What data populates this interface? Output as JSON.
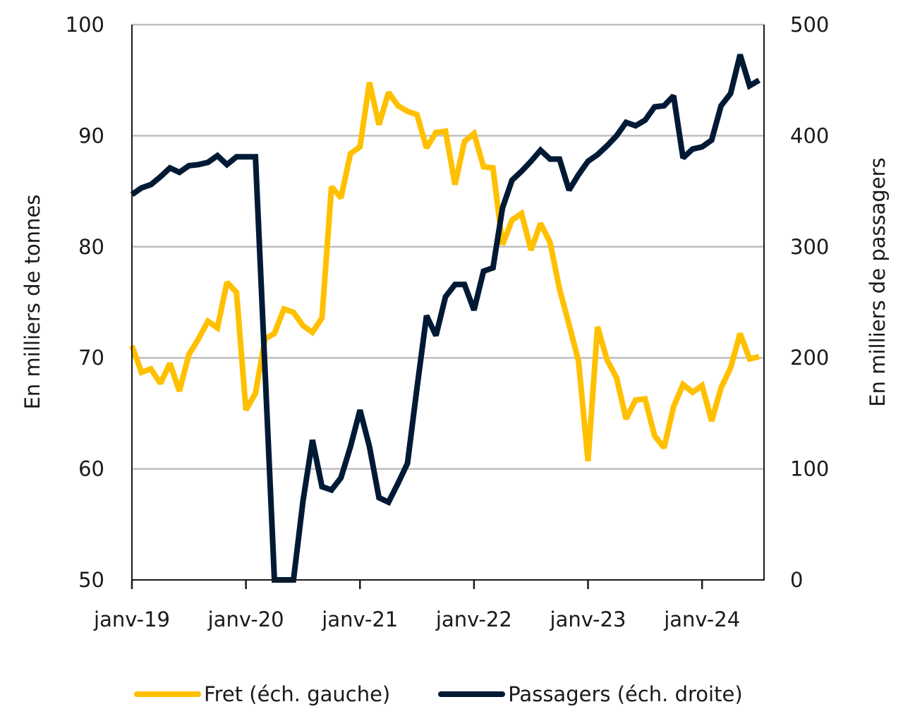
{
  "chart_data": {
    "type": "line",
    "title": "",
    "xlabel": "",
    "ylabel_left": "En milliers de tonnes",
    "ylabel_right": "En milliers de passagers",
    "x_unit": "months since janv-19",
    "x": [
      0,
      1,
      2,
      3,
      4,
      5,
      6,
      7,
      8,
      9,
      10,
      11,
      12,
      13,
      14,
      15,
      16,
      17,
      18,
      19,
      20,
      21,
      22,
      23,
      24,
      25,
      26,
      27,
      28,
      29,
      30,
      31,
      32,
      33,
      34,
      35,
      36,
      37,
      38,
      39,
      40,
      41,
      42,
      43,
      44,
      45,
      46,
      47,
      48,
      49,
      50,
      51,
      52,
      53,
      54,
      55,
      56,
      57,
      58,
      59,
      60,
      61,
      62,
      63,
      64,
      65,
      66
    ],
    "x_ticks": [
      {
        "value": 0,
        "label": "janv-19"
      },
      {
        "value": 12,
        "label": "janv-20"
      },
      {
        "value": 24,
        "label": "janv-21"
      },
      {
        "value": 36,
        "label": "janv-22"
      },
      {
        "value": 48,
        "label": "janv-23"
      },
      {
        "value": 60,
        "label": "janv-24"
      }
    ],
    "xlim": [
      0,
      66.5
    ],
    "ylim_left": [
      50,
      100
    ],
    "yticks_left": [
      "50",
      "60",
      "70",
      "80",
      "90",
      "100"
    ],
    "ylim_right": [
      0,
      500
    ],
    "yticks_right": [
      "0",
      "100",
      "200",
      "300",
      "400",
      "500"
    ],
    "grid": true,
    "legend_position": "bottom",
    "series": [
      {
        "name": "Fret (éch. gauche)",
        "axis": "left",
        "color": "#FFC000",
        "values": [
          71.1,
          68.7,
          69.0,
          67.7,
          69.5,
          67.0,
          70.3,
          71.7,
          73.3,
          72.7,
          76.8,
          75.9,
          65.3,
          66.8,
          71.7,
          72.2,
          74.4,
          74.1,
          72.9,
          72.3,
          73.6,
          85.4,
          84.4,
          88.4,
          89.0,
          94.8,
          91.0,
          93.9,
          92.7,
          92.2,
          91.9,
          88.9,
          90.3,
          90.4,
          85.6,
          89.5,
          90.2,
          87.2,
          87.1,
          80.2,
          82.4,
          83.0,
          79.7,
          82.1,
          80.4,
          76.2,
          73.0,
          69.7,
          60.7,
          72.8,
          69.8,
          68.2,
          64.5,
          66.2,
          66.3,
          63.0,
          61.9,
          65.6,
          67.6,
          66.9,
          67.5,
          64.3,
          67.3,
          69.1,
          72.2,
          69.9,
          70.1
        ]
      },
      {
        "name": "Passagers (éch. droite)",
        "axis": "right",
        "color": "#001A35",
        "values": [
          347,
          353,
          356,
          363,
          371,
          367,
          373,
          374,
          376,
          382,
          374,
          381,
          381,
          381,
          190,
          0,
          0,
          0,
          71,
          126,
          84,
          81,
          92,
          120,
          153,
          120,
          74,
          70,
          87,
          105,
          173,
          238,
          220,
          255,
          266,
          266,
          243,
          278,
          281,
          335,
          360,
          368,
          377,
          387,
          379,
          379,
          351,
          365,
          377,
          383,
          391,
          400,
          412,
          409,
          414,
          426,
          427,
          436,
          380,
          388,
          390,
          396,
          427,
          438,
          473,
          445,
          450
        ]
      }
    ]
  },
  "colors": {
    "grid": "#BFBFBF",
    "axis": "#1a1a1a"
  }
}
